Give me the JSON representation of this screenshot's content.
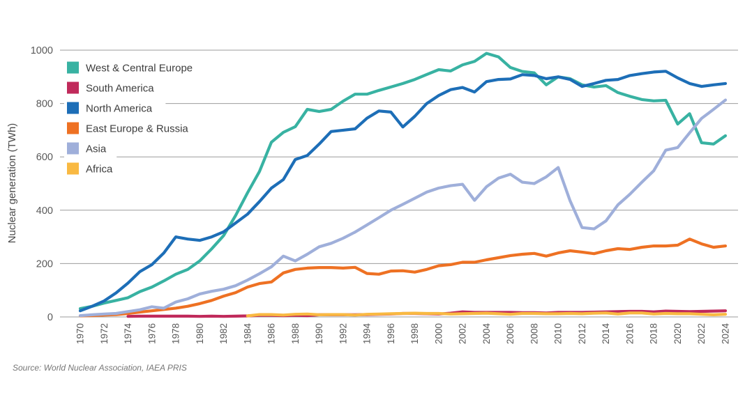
{
  "y_axis": {
    "title": "Nuclear generation (TWh)",
    "ticks": [
      0,
      200,
      400,
      600,
      800,
      1000
    ]
  },
  "x_axis": {
    "tick_years": [
      1970,
      1972,
      1974,
      1976,
      1978,
      1980,
      1982,
      1984,
      1986,
      1988,
      1990,
      1992,
      1994,
      1996,
      1998,
      2000,
      2002,
      2004,
      2006,
      2008,
      2010,
      2012,
      2014,
      2016,
      2018,
      2020,
      2022,
      2024
    ]
  },
  "source": "Source: World Nuclear Association, IAEA PRIS",
  "colors": {
    "grid": "#9b9b9b",
    "axis_text": "#595959",
    "legend_text": "#3d3d3d"
  },
  "legend": {
    "items": [
      {
        "label": "West & Central Europe",
        "color": "#38b2a2"
      },
      {
        "label": "South America",
        "color": "#c02a5b"
      },
      {
        "label": "North America",
        "color": "#1d6eb7"
      },
      {
        "label": "East Europe & Russia",
        "color": "#ee7123"
      },
      {
        "label": "Asia",
        "color": "#9fafda"
      },
      {
        "label": "Africa",
        "color": "#f9b942"
      }
    ]
  },
  "chart_data": {
    "type": "line",
    "title": "",
    "xlabel": "",
    "ylabel": "Nuclear generation (TWh)",
    "ylim": [
      0,
      1000
    ],
    "xlim": [
      1970,
      2024
    ],
    "grid": true,
    "legend_position": "top-left",
    "x": [
      1970,
      1971,
      1972,
      1973,
      1974,
      1975,
      1976,
      1977,
      1978,
      1979,
      1980,
      1981,
      1982,
      1983,
      1984,
      1985,
      1986,
      1987,
      1988,
      1989,
      1990,
      1991,
      1992,
      1993,
      1994,
      1995,
      1996,
      1997,
      1998,
      1999,
      2000,
      2001,
      2002,
      2003,
      2004,
      2005,
      2006,
      2007,
      2008,
      2009,
      2010,
      2011,
      2012,
      2013,
      2014,
      2015,
      2016,
      2017,
      2018,
      2019,
      2020,
      2021,
      2022,
      2023,
      2024
    ],
    "series": [
      {
        "name": "West & Central Europe",
        "color": "#38b2a2",
        "values": [
          31,
          40,
          52,
          62,
          72,
          95,
          112,
          135,
          160,
          178,
          210,
          255,
          305,
          380,
          465,
          545,
          655,
          692,
          713,
          778,
          770,
          778,
          809,
          835,
          835,
          849,
          862,
          875,
          890,
          909,
          927,
          922,
          945,
          958,
          988,
          975,
          935,
          920,
          915,
          870,
          900,
          893,
          870,
          862,
          867,
          841,
          827,
          815,
          810,
          812,
          723,
          762,
          653,
          648,
          679
        ]
      },
      {
        "name": "South America",
        "color": "#c02a5b",
        "values": [
          null,
          null,
          null,
          null,
          2,
          3,
          3,
          3,
          3,
          3,
          2,
          3,
          2,
          3,
          4,
          6,
          6,
          5,
          6,
          5,
          8,
          8,
          8,
          8,
          9,
          10,
          11,
          13,
          13,
          12,
          11,
          14,
          19,
          17,
          17,
          17,
          17,
          16,
          16,
          15,
          17,
          17,
          17,
          18,
          19,
          20,
          21,
          21,
          19,
          22,
          21,
          20,
          21,
          22,
          23
        ]
      },
      {
        "name": "North America",
        "color": "#1d6eb7",
        "values": [
          23,
          40,
          60,
          90,
          127,
          170,
          196,
          240,
          300,
          292,
          287,
          300,
          319,
          352,
          385,
          432,
          483,
          515,
          590,
          605,
          648,
          695,
          700,
          705,
          745,
          772,
          768,
          712,
          752,
          800,
          830,
          852,
          860,
          843,
          882,
          890,
          892,
          908,
          905,
          893,
          900,
          890,
          864,
          875,
          887,
          890,
          905,
          912,
          918,
          921,
          896,
          875,
          864,
          870,
          875
        ]
      },
      {
        "name": "East Europe & Russia",
        "color": "#ee7123",
        "values": [
          4,
          5,
          7,
          9,
          13,
          18,
          23,
          28,
          33,
          40,
          50,
          62,
          78,
          91,
          112,
          125,
          131,
          165,
          178,
          183,
          185,
          185,
          183,
          186,
          163,
          160,
          172,
          173,
          168,
          178,
          192,
          196,
          205,
          205,
          214,
          222,
          230,
          235,
          238,
          228,
          240,
          248,
          243,
          237,
          248,
          256,
          253,
          261,
          266,
          266,
          269,
          292,
          274,
          261,
          266
        ]
      },
      {
        "name": "Asia",
        "color": "#9fafda",
        "values": [
          5,
          8,
          11,
          13,
          20,
          27,
          38,
          33,
          56,
          68,
          86,
          96,
          104,
          117,
          138,
          162,
          188,
          228,
          210,
          235,
          263,
          276,
          295,
          318,
          345,
          372,
          400,
          422,
          445,
          468,
          483,
          492,
          497,
          437,
          488,
          520,
          535,
          505,
          500,
          525,
          560,
          435,
          335,
          330,
          360,
          420,
          460,
          505,
          548,
          625,
          635,
          690,
          744,
          778,
          813
        ]
      },
      {
        "name": "Africa",
        "color": "#f9b942",
        "values": [
          null,
          null,
          null,
          null,
          null,
          null,
          null,
          null,
          null,
          null,
          null,
          null,
          null,
          null,
          4,
          9,
          9,
          7,
          10,
          11,
          8,
          9,
          9,
          7,
          10,
          11,
          12,
          13,
          14,
          13,
          13,
          11,
          12,
          13,
          14,
          12,
          10,
          13,
          13,
          12,
          12,
          13,
          12,
          14,
          15,
          11,
          15,
          15,
          11,
          13,
          12,
          12,
          10,
          8,
          10
        ]
      }
    ]
  }
}
